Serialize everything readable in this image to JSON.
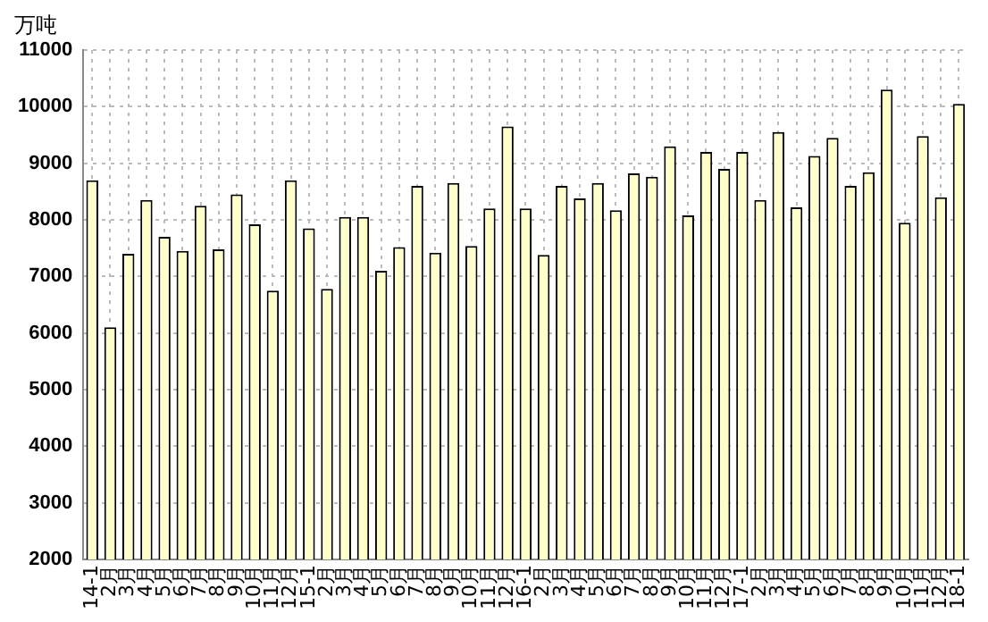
{
  "chart_data": {
    "type": "bar",
    "ylabel": "万吨",
    "categories": [
      "14-1",
      "2月",
      "3月",
      "4月",
      "5月",
      "6月",
      "7月",
      "8月",
      "9月",
      "10月",
      "11月",
      "12月",
      "15-1",
      "2月",
      "3月",
      "4月",
      "5月",
      "6月",
      "7月",
      "8月",
      "9月",
      "10月",
      "11月",
      "12月",
      "16-1",
      "2月",
      "3月",
      "4月",
      "5月",
      "6月",
      "7月",
      "8月",
      "9月",
      "10月",
      "11月",
      "12月",
      "17-1",
      "2月",
      "3月",
      "4月",
      "5月",
      "6月",
      "7月",
      "8月",
      "9月",
      "10月",
      "11月",
      "12月",
      "18-1"
    ],
    "values": [
      8700,
      6100,
      7400,
      8350,
      7700,
      7450,
      8250,
      7480,
      8450,
      7920,
      6750,
      8700,
      7850,
      6780,
      8050,
      8050,
      7100,
      7520,
      8600,
      7420,
      8650,
      7540,
      8200,
      9650,
      8200,
      7380,
      8600,
      8380,
      8650,
      8170,
      8820,
      8760,
      9300,
      8080,
      9200,
      8900,
      9200,
      8350,
      9550,
      8220,
      9130,
      9450,
      8600,
      8840,
      10300,
      7950,
      9480,
      8400,
      10050
    ],
    "color": "#ffffcc",
    "ylim": [
      2000,
      11000
    ],
    "yticks": [
      2000,
      3000,
      4000,
      5000,
      6000,
      7000,
      8000,
      9000,
      10000,
      11000
    ],
    "grid": true,
    "legend": false
  }
}
